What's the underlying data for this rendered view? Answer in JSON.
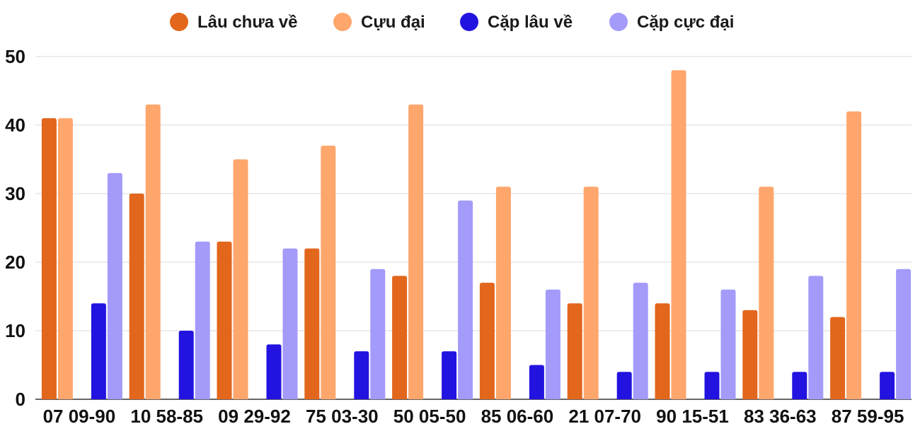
{
  "chart_data": {
    "type": "bar",
    "categories": [
      "07 09-90",
      "10 58-85",
      "09 29-92",
      "75 03-30",
      "50 05-50",
      "85 06-60",
      "21 07-70",
      "90 15-51",
      "83 36-63",
      "87 59-95"
    ],
    "series": [
      {
        "name": "Lâu chưa về",
        "color": "#e2661c",
        "values": [
          41,
          30,
          23,
          22,
          18,
          17,
          14,
          14,
          13,
          12
        ]
      },
      {
        "name": "Cựu đại",
        "color": "#fea66c",
        "values": [
          41,
          43,
          35,
          37,
          43,
          31,
          31,
          48,
          31,
          42
        ]
      },
      {
        "name": "Cặp lâu về",
        "color": "#2313e0",
        "values": [
          14,
          10,
          8,
          7,
          7,
          5,
          4,
          4,
          4,
          4
        ]
      },
      {
        "name": "Cặp cực đại",
        "color": "#a39afa",
        "values": [
          33,
          23,
          22,
          19,
          29,
          16,
          17,
          16,
          18,
          19
        ]
      }
    ],
    "ylim": [
      0,
      50
    ],
    "yticks": [
      0,
      10,
      20,
      30,
      40,
      50
    ],
    "grid": true,
    "legend": "top-center"
  }
}
